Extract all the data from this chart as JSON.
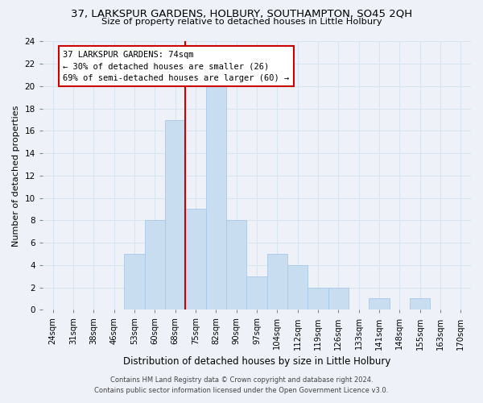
{
  "title_line1": "37, LARKSPUR GARDENS, HOLBURY, SOUTHAMPTON, SO45 2QH",
  "title_line2": "Size of property relative to detached houses in Little Holbury",
  "xlabel": "Distribution of detached houses by size in Little Holbury",
  "ylabel": "Number of detached properties",
  "bin_labels": [
    "24sqm",
    "31sqm",
    "38sqm",
    "46sqm",
    "53sqm",
    "60sqm",
    "68sqm",
    "75sqm",
    "82sqm",
    "90sqm",
    "97sqm",
    "104sqm",
    "112sqm",
    "119sqm",
    "126sqm",
    "133sqm",
    "141sqm",
    "148sqm",
    "155sqm",
    "163sqm",
    "170sqm"
  ],
  "bar_heights": [
    0,
    0,
    0,
    0,
    5,
    8,
    17,
    9,
    20,
    8,
    3,
    5,
    4,
    2,
    2,
    0,
    1,
    0,
    1,
    0,
    0
  ],
  "bar_color": "#c8ddf0",
  "bar_edge_color": "#aac8e8",
  "marker_color": "#cc0000",
  "annotation_line1": "37 LARKSPUR GARDENS: 74sqm",
  "annotation_line2": "← 30% of detached houses are smaller (26)",
  "annotation_line3": "69% of semi-detached houses are larger (60) →",
  "ylim": [
    0,
    24
  ],
  "yticks": [
    0,
    2,
    4,
    6,
    8,
    10,
    12,
    14,
    16,
    18,
    20,
    22,
    24
  ],
  "footnote1": "Contains HM Land Registry data © Crown copyright and database right 2024.",
  "footnote2": "Contains public sector information licensed under the Open Government Licence v3.0.",
  "bg_color": "#eef2f8",
  "grid_color": "#d8e4f0"
}
